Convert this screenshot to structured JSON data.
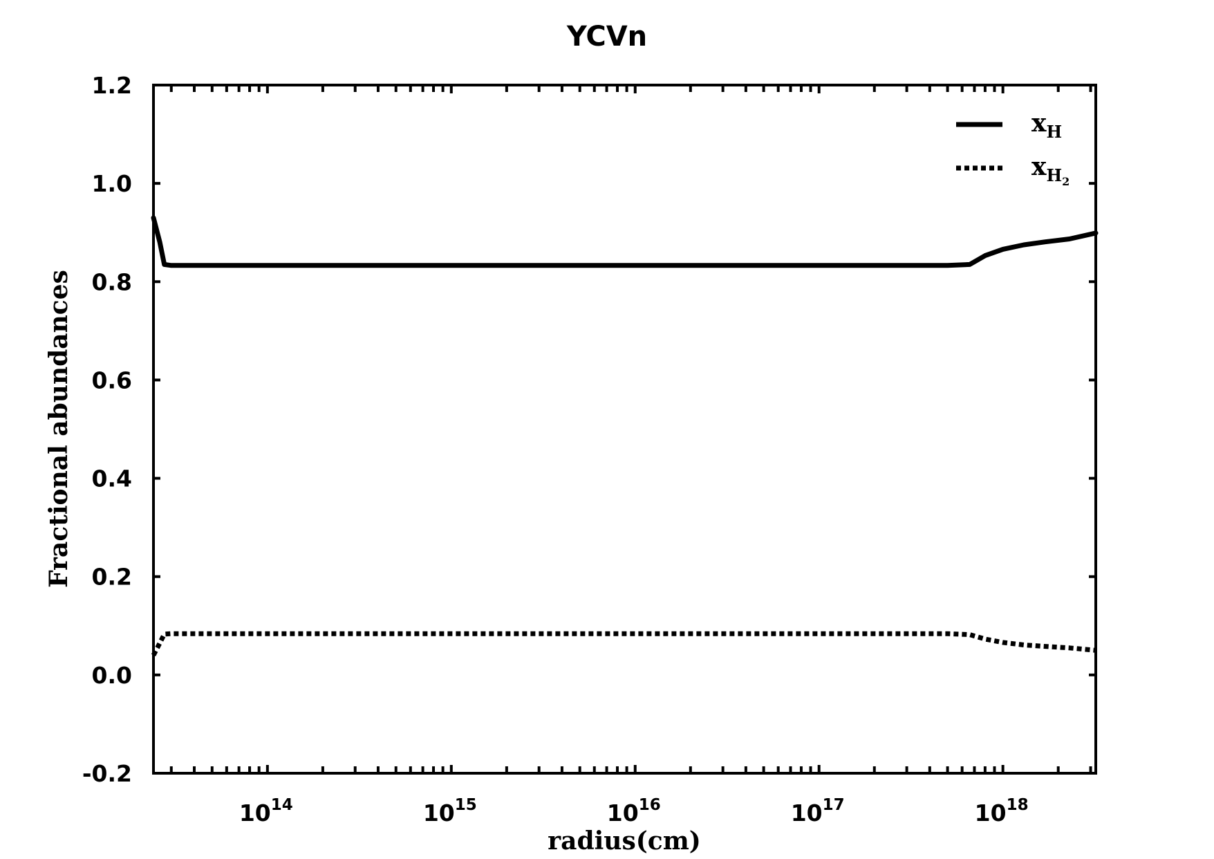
{
  "chart_data": {
    "type": "line",
    "title": "YCVn",
    "xlabel": "radius(cm)",
    "ylabel": "Fractional abundances",
    "x_scale": "log",
    "xlim": [
      24000000000000.0,
      3.2e+18
    ],
    "ylim": [
      -0.2,
      1.2
    ],
    "y_ticks": [
      "1.2",
      "1.0",
      "0.8",
      "0.6",
      "0.4",
      "0.2",
      "0.0",
      "-0.2"
    ],
    "x_ticks": [
      {
        "base": "10",
        "exp": "14"
      },
      {
        "base": "10",
        "exp": "15"
      },
      {
        "base": "10",
        "exp": "16"
      },
      {
        "base": "10",
        "exp": "17"
      },
      {
        "base": "10",
        "exp": "18"
      }
    ],
    "legend_placement": "top-right",
    "grid": false,
    "series": [
      {
        "name": "xH",
        "legend_main": "x",
        "legend_sub": "H",
        "legend_subsub": "",
        "style": "solid",
        "color": "#000000",
        "x": [
          24000000000000.0,
          26000000000000.0,
          27500000000000.0,
          30000000000000.0,
          100000000000000.0,
          1000000000000000.0,
          1e+16,
          1e+17,
          5e+17,
          6.6e+17,
          8e+17,
          1e+18,
          1.3e+18,
          1.7e+18,
          2.3e+18,
          3.2e+18
        ],
        "y": [
          0.93,
          0.88,
          0.835,
          0.833,
          0.833,
          0.833,
          0.833,
          0.833,
          0.833,
          0.835,
          0.853,
          0.866,
          0.875,
          0.881,
          0.887,
          0.899
        ]
      },
      {
        "name": "xH2",
        "legend_main": "x",
        "legend_sub": "H",
        "legend_subsub": "2",
        "style": "dotted",
        "color": "#000000",
        "x": [
          24000000000000.0,
          26000000000000.0,
          27500000000000.0,
          30000000000000.0,
          100000000000000.0,
          1000000000000000.0,
          1e+16,
          1e+17,
          5e+17,
          6.6e+17,
          8e+17,
          1e+18,
          1.3e+18,
          1.7e+18,
          2.3e+18,
          3.2e+18
        ],
        "y": [
          0.04,
          0.065,
          0.083,
          0.084,
          0.084,
          0.084,
          0.084,
          0.084,
          0.084,
          0.082,
          0.073,
          0.066,
          0.061,
          0.058,
          0.055,
          0.05
        ]
      }
    ]
  }
}
